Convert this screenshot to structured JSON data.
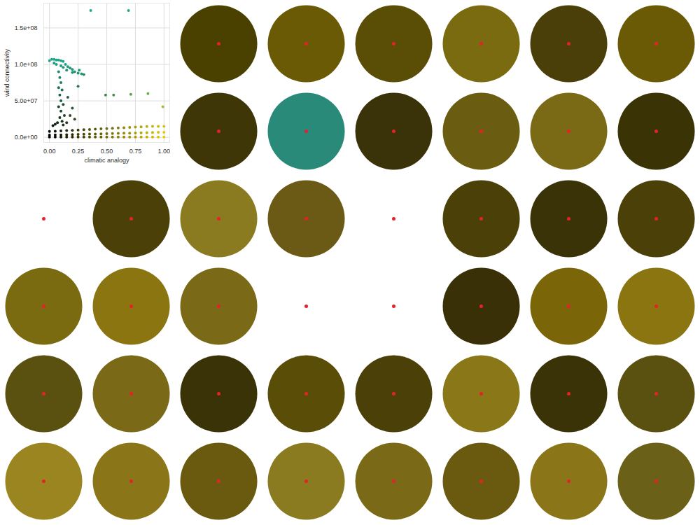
{
  "chart_data": [
    {
      "type": "scatter",
      "xlabel": "climatic analogy",
      "ylabel": "wind connectivity",
      "xlim": [
        -0.05,
        1.05
      ],
      "ylim": [
        -7000000,
        184000000
      ],
      "xticks": [
        {
          "value": 0,
          "label": "0.00"
        },
        {
          "value": 0.25,
          "label": "0.25"
        },
        {
          "value": 0.5,
          "label": "0.50"
        },
        {
          "value": 0.75,
          "label": "0.75"
        },
        {
          "value": 1,
          "label": "1.00"
        }
      ],
      "yticks": [
        {
          "value": 0,
          "label": "0.0e+00"
        },
        {
          "value": 50000000,
          "label": "5.0e+07"
        },
        {
          "value": 100000000,
          "label": "1.0e+08"
        },
        {
          "value": 150000000,
          "label": "1.5e+08"
        }
      ],
      "grid": true,
      "x": [
        0,
        0.05,
        0.1,
        0.15,
        0.2,
        0.25,
        0.3,
        0.35,
        0.4,
        0.45,
        0.5,
        0.55,
        0.6,
        0.65,
        0.7,
        0.75,
        0.8,
        0.85,
        0.9,
        0.95,
        1,
        0,
        0.05,
        0.1,
        0.15,
        0.2,
        0.25,
        0.3,
        0.35,
        0.4,
        0.45,
        0.5,
        0.55,
        0.6,
        0.65,
        0.7,
        0.75,
        0.8,
        0.85,
        0.9,
        0.95,
        1,
        0,
        0.05,
        0.1,
        0.15,
        0.2,
        0.25,
        0.3,
        0.35,
        0.4,
        0.45,
        0.5,
        0.55,
        0.6,
        0.65,
        0.7,
        0.75,
        0.8,
        0.85,
        0.9,
        0.95,
        1,
        0,
        0.02,
        0.04,
        0.06,
        0.08,
        0.1,
        0.12,
        0.14,
        0.16,
        0.18,
        0.2,
        0.22,
        0.25,
        0.28,
        0.3,
        0.26,
        0.2,
        0.15,
        0.12,
        0.1,
        0.06,
        0.04,
        0.08,
        0.09,
        0.1,
        0.08,
        0.11,
        0.09,
        0.1,
        0.12,
        0.08,
        0.1,
        0.13,
        0.09,
        0.11,
        0.07,
        0.05,
        0.03,
        0.12,
        0.15,
        0.16,
        0.2,
        0.22,
        0.18,
        0.25,
        0.36,
        0.69,
        0.49,
        0.56,
        0.71,
        0.86,
        0.99
      ],
      "values": [
        500000,
        500000,
        500000,
        500000,
        500000,
        500000,
        500000,
        500000,
        500000,
        500000,
        500000,
        500000,
        500000,
        500000,
        500000,
        500000,
        500000,
        500000,
        500000,
        500000,
        500000,
        3000000,
        3200000,
        3400000,
        3600000,
        3800000,
        4000000,
        4200000,
        4400000,
        4600000,
        4800000,
        5000000,
        5200000,
        5400000,
        5600000,
        5800000,
        6000000,
        6200000,
        6400000,
        6600000,
        6800000,
        7000000,
        8000000,
        8400000,
        8800000,
        9200000,
        9600000,
        10000000,
        10400000,
        10800000,
        11200000,
        11600000,
        12000000,
        12400000,
        12800000,
        13200000,
        13600000,
        14000000,
        14400000,
        14800000,
        15000000,
        15000000,
        15000000,
        105000000,
        107000000,
        107000000,
        106000000,
        106000000,
        105000000,
        104000000,
        100000000,
        97000000,
        95000000,
        93000000,
        90000000,
        88000000,
        87000000,
        86000000,
        92000000,
        89000000,
        92000000,
        96000000,
        98000000,
        100000000,
        102000000,
        90000000,
        82000000,
        75000000,
        68000000,
        65000000,
        58000000,
        50000000,
        45000000,
        42000000,
        36000000,
        30000000,
        27000000,
        22000000,
        20000000,
        18000000,
        16000000,
        17000000,
        20000000,
        55000000,
        40000000,
        25000000,
        30000000,
        70000000,
        174000000,
        174000000,
        58000000,
        58000000,
        59000000,
        60000000,
        42000000
      ]
    },
    {
      "type": "map_grid",
      "colors": [
        "#4a4000",
        "#6b5a05",
        "#5a4d05",
        "#7a6a10",
        "#4a3f08",
        "#6a5a05",
        "#3f3608",
        "#2a8a7a",
        "#3a3208",
        "#6a5c10",
        "#7a6a15",
        "#3a3306",
        null,
        "#4a4008",
        "#8a7a20",
        "#6a5a15",
        null,
        "#4a4008",
        "#3a3308",
        "#4a4008",
        "#7a6a10",
        "#8a7510",
        "#7a6a18",
        null,
        null,
        "#3a3008",
        "#7a6508",
        "#8a7510",
        "#5a5010",
        "#7a6a18",
        "#3a3308",
        "#5a4d08",
        "#4a4008",
        "#8a7818",
        "#3a3308",
        "#5a5010",
        "#9a8520",
        "#8a7518",
        "#6a5a10",
        "#8a7a20",
        "#7a6a18",
        "#6a5a10",
        "#8a7518",
        "#6a6018"
      ]
    }
  ]
}
